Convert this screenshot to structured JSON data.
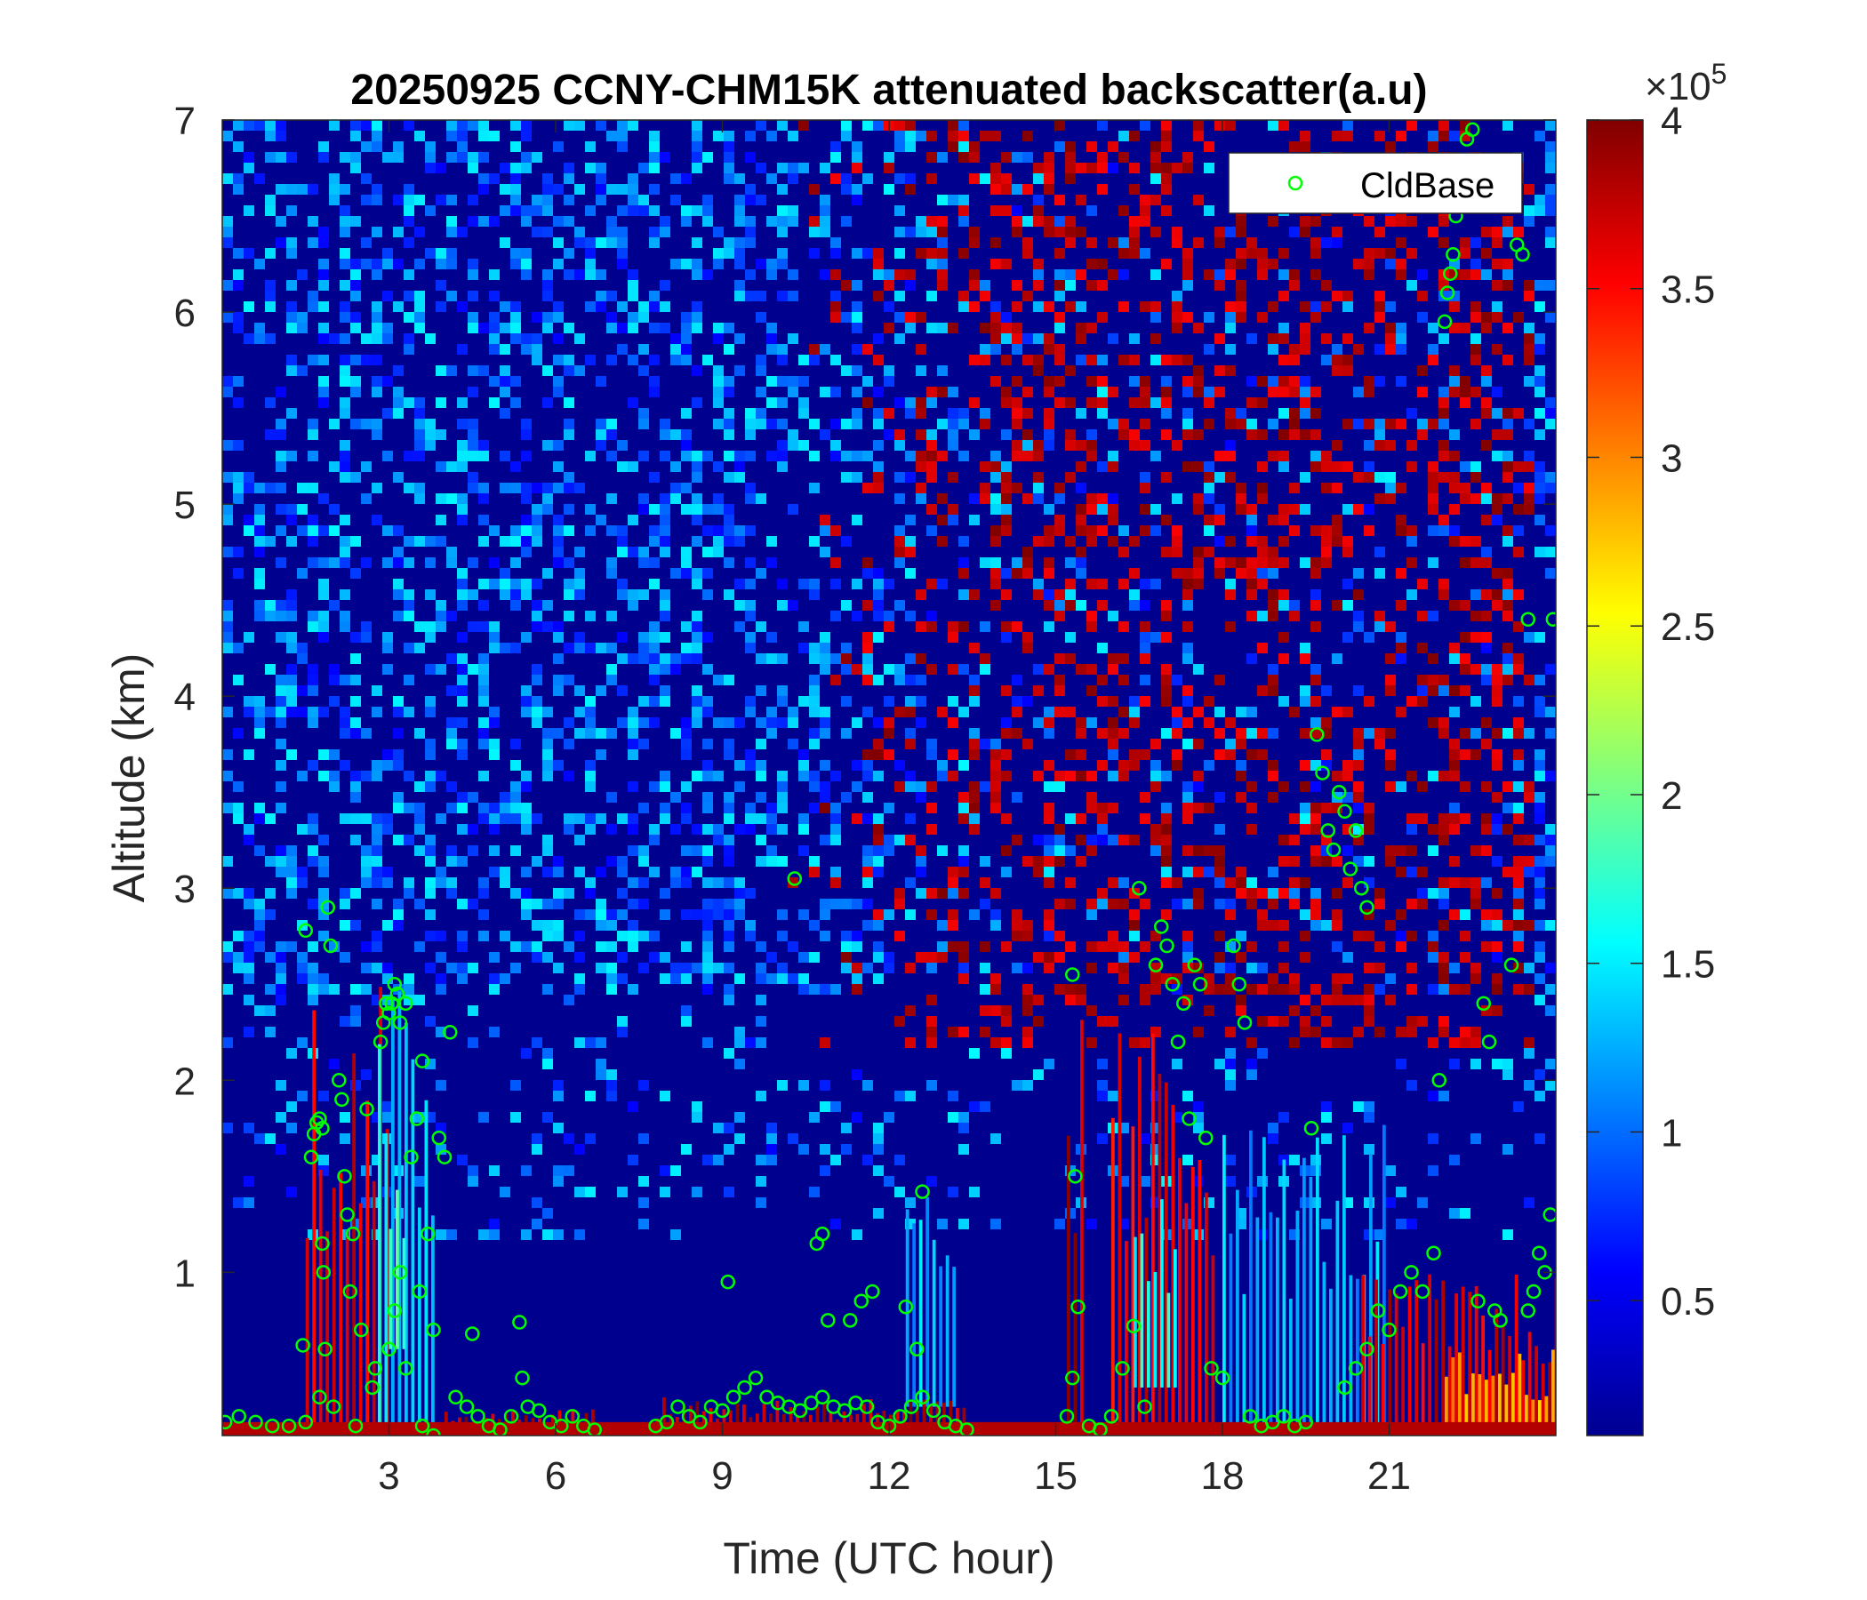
{
  "chart_data": {
    "type": "heatmap",
    "title": "20250925 CCNY-CHM15K attenuated backscatter(a.u)",
    "xlabel": "Time (UTC hour)",
    "ylabel": "Altitude (km)",
    "xlim": [
      0,
      24
    ],
    "ylim": [
      0.15,
      7
    ],
    "xticks": [
      3,
      6,
      9,
      12,
      15,
      18,
      21
    ],
    "yticks": [
      1,
      2,
      3,
      4,
      5,
      6,
      7
    ],
    "colormap": "jet",
    "colorbar": {
      "range": [
        0.1,
        4
      ],
      "ticks": [
        0.5,
        1,
        1.5,
        2,
        2.5,
        3,
        3.5,
        4
      ],
      "multiplier_base": "×10",
      "multiplier_exponent": "5"
    },
    "legend": {
      "position": "top-right",
      "entries": [
        "CldBase"
      ]
    },
    "series": [
      {
        "name": "CldBase",
        "marker": "open-circle",
        "color": "#00ff00",
        "points": [
          [
            0.05,
            0.22
          ],
          [
            0.3,
            0.25
          ],
          [
            0.6,
            0.22
          ],
          [
            0.9,
            0.2
          ],
          [
            1.2,
            0.2
          ],
          [
            1.5,
            0.22
          ],
          [
            1.45,
            0.62
          ],
          [
            1.5,
            2.78
          ],
          [
            1.6,
            1.6
          ],
          [
            1.65,
            1.72
          ],
          [
            1.7,
            1.78
          ],
          [
            1.75,
            1.8
          ],
          [
            1.8,
            1.75
          ],
          [
            1.75,
            0.35
          ],
          [
            1.8,
            1.15
          ],
          [
            1.82,
            1.0
          ],
          [
            1.85,
            0.6
          ],
          [
            1.9,
            2.9
          ],
          [
            1.95,
            2.7
          ],
          [
            2.0,
            0.3
          ],
          [
            2.1,
            2.0
          ],
          [
            2.15,
            1.9
          ],
          [
            2.2,
            1.5
          ],
          [
            2.25,
            1.3
          ],
          [
            2.3,
            0.9
          ],
          [
            2.35,
            1.2
          ],
          [
            2.4,
            0.2
          ],
          [
            2.5,
            0.7
          ],
          [
            2.6,
            1.85
          ],
          [
            2.7,
            0.4
          ],
          [
            2.75,
            0.5
          ],
          [
            2.85,
            2.2
          ],
          [
            2.9,
            2.3
          ],
          [
            2.95,
            2.4
          ],
          [
            3.0,
            2.35
          ],
          [
            3.05,
            2.4
          ],
          [
            3.1,
            2.5
          ],
          [
            3.15,
            2.45
          ],
          [
            3.2,
            2.3
          ],
          [
            3.3,
            2.4
          ],
          [
            3.4,
            1.6
          ],
          [
            3.5,
            1.8
          ],
          [
            3.55,
            0.9
          ],
          [
            3.6,
            2.1
          ],
          [
            3.7,
            1.2
          ],
          [
            3.8,
            0.7
          ],
          [
            3.9,
            1.7
          ],
          [
            4.0,
            1.6
          ],
          [
            4.1,
            2.25
          ],
          [
            3.0,
            0.6
          ],
          [
            3.1,
            0.8
          ],
          [
            3.2,
            1.0
          ],
          [
            3.3,
            0.5
          ],
          [
            3.6,
            0.2
          ],
          [
            3.8,
            0.15
          ],
          [
            4.2,
            0.35
          ],
          [
            4.4,
            0.3
          ],
          [
            4.6,
            0.25
          ],
          [
            4.8,
            0.2
          ],
          [
            5.0,
            0.18
          ],
          [
            5.2,
            0.25
          ],
          [
            5.4,
            0.45
          ],
          [
            5.5,
            0.3
          ],
          [
            5.7,
            0.28
          ],
          [
            5.9,
            0.22
          ],
          [
            6.1,
            0.2
          ],
          [
            6.3,
            0.25
          ],
          [
            6.5,
            0.2
          ],
          [
            6.7,
            0.18
          ],
          [
            4.5,
            0.68
          ],
          [
            5.35,
            0.74
          ],
          [
            7.8,
            0.2
          ],
          [
            8.0,
            0.22
          ],
          [
            8.2,
            0.3
          ],
          [
            8.4,
            0.25
          ],
          [
            8.6,
            0.22
          ],
          [
            8.8,
            0.3
          ],
          [
            9.0,
            0.28
          ],
          [
            9.1,
            0.95
          ],
          [
            9.2,
            0.35
          ],
          [
            9.4,
            0.4
          ],
          [
            9.6,
            0.45
          ],
          [
            9.8,
            0.35
          ],
          [
            10.0,
            0.32
          ],
          [
            10.2,
            0.3
          ],
          [
            10.4,
            0.28
          ],
          [
            10.6,
            0.32
          ],
          [
            10.8,
            0.35
          ],
          [
            11.0,
            0.3
          ],
          [
            11.2,
            0.28
          ],
          [
            11.4,
            0.32
          ],
          [
            11.6,
            0.3
          ],
          [
            11.8,
            0.22
          ],
          [
            12.0,
            0.2
          ],
          [
            12.2,
            0.25
          ],
          [
            12.4,
            0.3
          ],
          [
            12.6,
            0.35
          ],
          [
            12.8,
            0.28
          ],
          [
            13.0,
            0.22
          ],
          [
            13.2,
            0.2
          ],
          [
            13.4,
            0.18
          ],
          [
            10.3,
            3.05
          ],
          [
            10.7,
            1.15
          ],
          [
            10.8,
            1.2
          ],
          [
            10.9,
            0.75
          ],
          [
            11.3,
            0.75
          ],
          [
            11.5,
            0.85
          ],
          [
            11.7,
            0.9
          ],
          [
            12.3,
            0.82
          ],
          [
            12.5,
            0.6
          ],
          [
            12.6,
            1.42
          ],
          [
            15.2,
            0.25
          ],
          [
            15.3,
            0.45
          ],
          [
            15.3,
            2.55
          ],
          [
            15.35,
            1.5
          ],
          [
            15.4,
            0.82
          ],
          [
            15.6,
            0.2
          ],
          [
            15.8,
            0.18
          ],
          [
            16.0,
            0.25
          ],
          [
            16.2,
            0.5
          ],
          [
            16.4,
            0.72
          ],
          [
            16.5,
            3.0
          ],
          [
            16.6,
            0.3
          ],
          [
            16.8,
            2.6
          ],
          [
            16.9,
            2.8
          ],
          [
            17.0,
            2.7
          ],
          [
            17.1,
            2.5
          ],
          [
            17.2,
            2.2
          ],
          [
            17.3,
            2.4
          ],
          [
            17.4,
            1.8
          ],
          [
            17.5,
            2.6
          ],
          [
            17.6,
            2.5
          ],
          [
            17.7,
            1.7
          ],
          [
            17.8,
            0.5
          ],
          [
            18.0,
            0.45
          ],
          [
            18.2,
            2.7
          ],
          [
            18.3,
            2.5
          ],
          [
            18.4,
            2.3
          ],
          [
            18.5,
            0.25
          ],
          [
            18.7,
            0.2
          ],
          [
            18.9,
            0.22
          ],
          [
            19.1,
            0.25
          ],
          [
            19.3,
            0.2
          ],
          [
            19.5,
            0.22
          ],
          [
            19.6,
            1.75
          ],
          [
            19.7,
            3.8
          ],
          [
            19.8,
            3.6
          ],
          [
            19.9,
            3.3
          ],
          [
            20.0,
            3.2
          ],
          [
            20.1,
            3.5
          ],
          [
            20.2,
            3.4
          ],
          [
            20.3,
            3.1
          ],
          [
            20.4,
            3.3
          ],
          [
            20.5,
            3.0
          ],
          [
            20.6,
            2.9
          ],
          [
            20.2,
            0.4
          ],
          [
            20.4,
            0.5
          ],
          [
            20.6,
            0.6
          ],
          [
            20.8,
            0.8
          ],
          [
            21.0,
            0.7
          ],
          [
            21.2,
            0.9
          ],
          [
            21.4,
            1.0
          ],
          [
            21.6,
            0.9
          ],
          [
            21.8,
            1.1
          ],
          [
            21.9,
            2.0
          ],
          [
            22.0,
            5.95
          ],
          [
            22.05,
            6.1
          ],
          [
            22.1,
            6.2
          ],
          [
            22.15,
            6.3
          ],
          [
            22.2,
            6.5
          ],
          [
            22.3,
            6.7
          ],
          [
            22.4,
            6.9
          ],
          [
            22.5,
            6.95
          ],
          [
            22.6,
            0.85
          ],
          [
            22.7,
            2.4
          ],
          [
            22.8,
            2.2
          ],
          [
            22.9,
            0.8
          ],
          [
            23.0,
            0.75
          ],
          [
            23.2,
            2.6
          ],
          [
            23.3,
            6.35
          ],
          [
            23.4,
            6.3
          ],
          [
            23.5,
            4.4
          ],
          [
            23.5,
            0.8
          ],
          [
            23.6,
            0.9
          ],
          [
            23.7,
            1.1
          ],
          [
            23.8,
            1.0
          ],
          [
            23.9,
            1.3
          ],
          [
            23.95,
            4.4
          ]
        ]
      }
    ]
  }
}
